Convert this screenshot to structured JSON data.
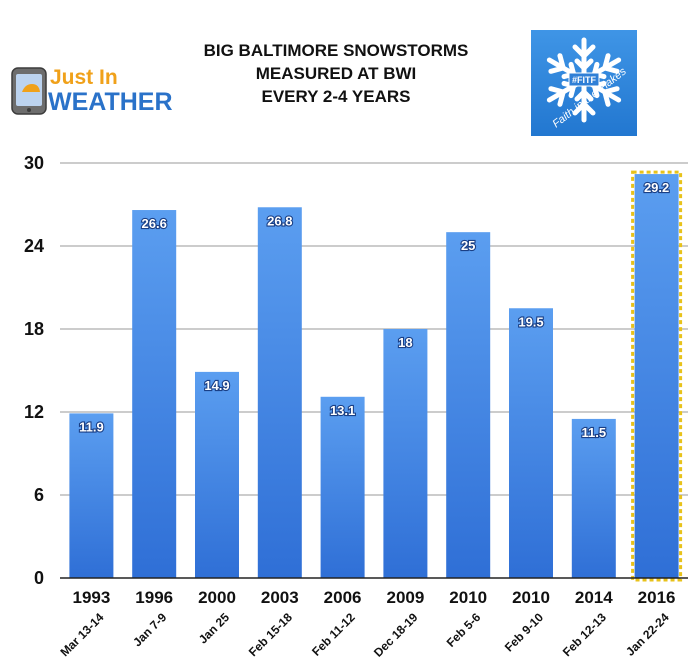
{
  "chart_data": {
    "type": "bar",
    "title_lines": [
      "BIG BALTIMORE SNOWSTORMS",
      "MEASURED AT BWI",
      "EVERY 2-4 YEARS"
    ],
    "categories": [
      "1993",
      "1996",
      "2000",
      "2003",
      "2006",
      "2009",
      "2010",
      "2010",
      "2014",
      "2016"
    ],
    "dates": [
      "Mar 13-14",
      "Jan 7-9",
      "Jan 25",
      "Feb 15-18",
      "Feb 11-12",
      "Dec 18-19",
      "Feb 5-6",
      "Feb 9-10",
      "Feb 12-13",
      "Jan 22-24"
    ],
    "values": [
      11.9,
      26.6,
      14.9,
      26.8,
      13.1,
      18,
      25,
      19.5,
      11.5,
      29.2
    ],
    "value_labels": [
      "11.9",
      "26.6",
      "14.9",
      "26.8",
      "13.1",
      "18",
      "25",
      "19.5",
      "11.5",
      "29.2"
    ],
    "ylim": [
      0,
      30
    ],
    "yticks": [
      "0",
      "6",
      "12",
      "18",
      "24",
      "30"
    ],
    "grid": true,
    "highlight_index": 9,
    "colors": {
      "bar_top": "#5b9ef0",
      "bar_bottom": "#2f6fd6",
      "highlight_border": "#e8c21a",
      "grid": "#9a9a9a"
    }
  },
  "logos": {
    "left": {
      "line1": "Just In",
      "line2": "WEATHER"
    },
    "right": {
      "badge": "#FITF",
      "text": "Faith in the Flakes"
    }
  }
}
